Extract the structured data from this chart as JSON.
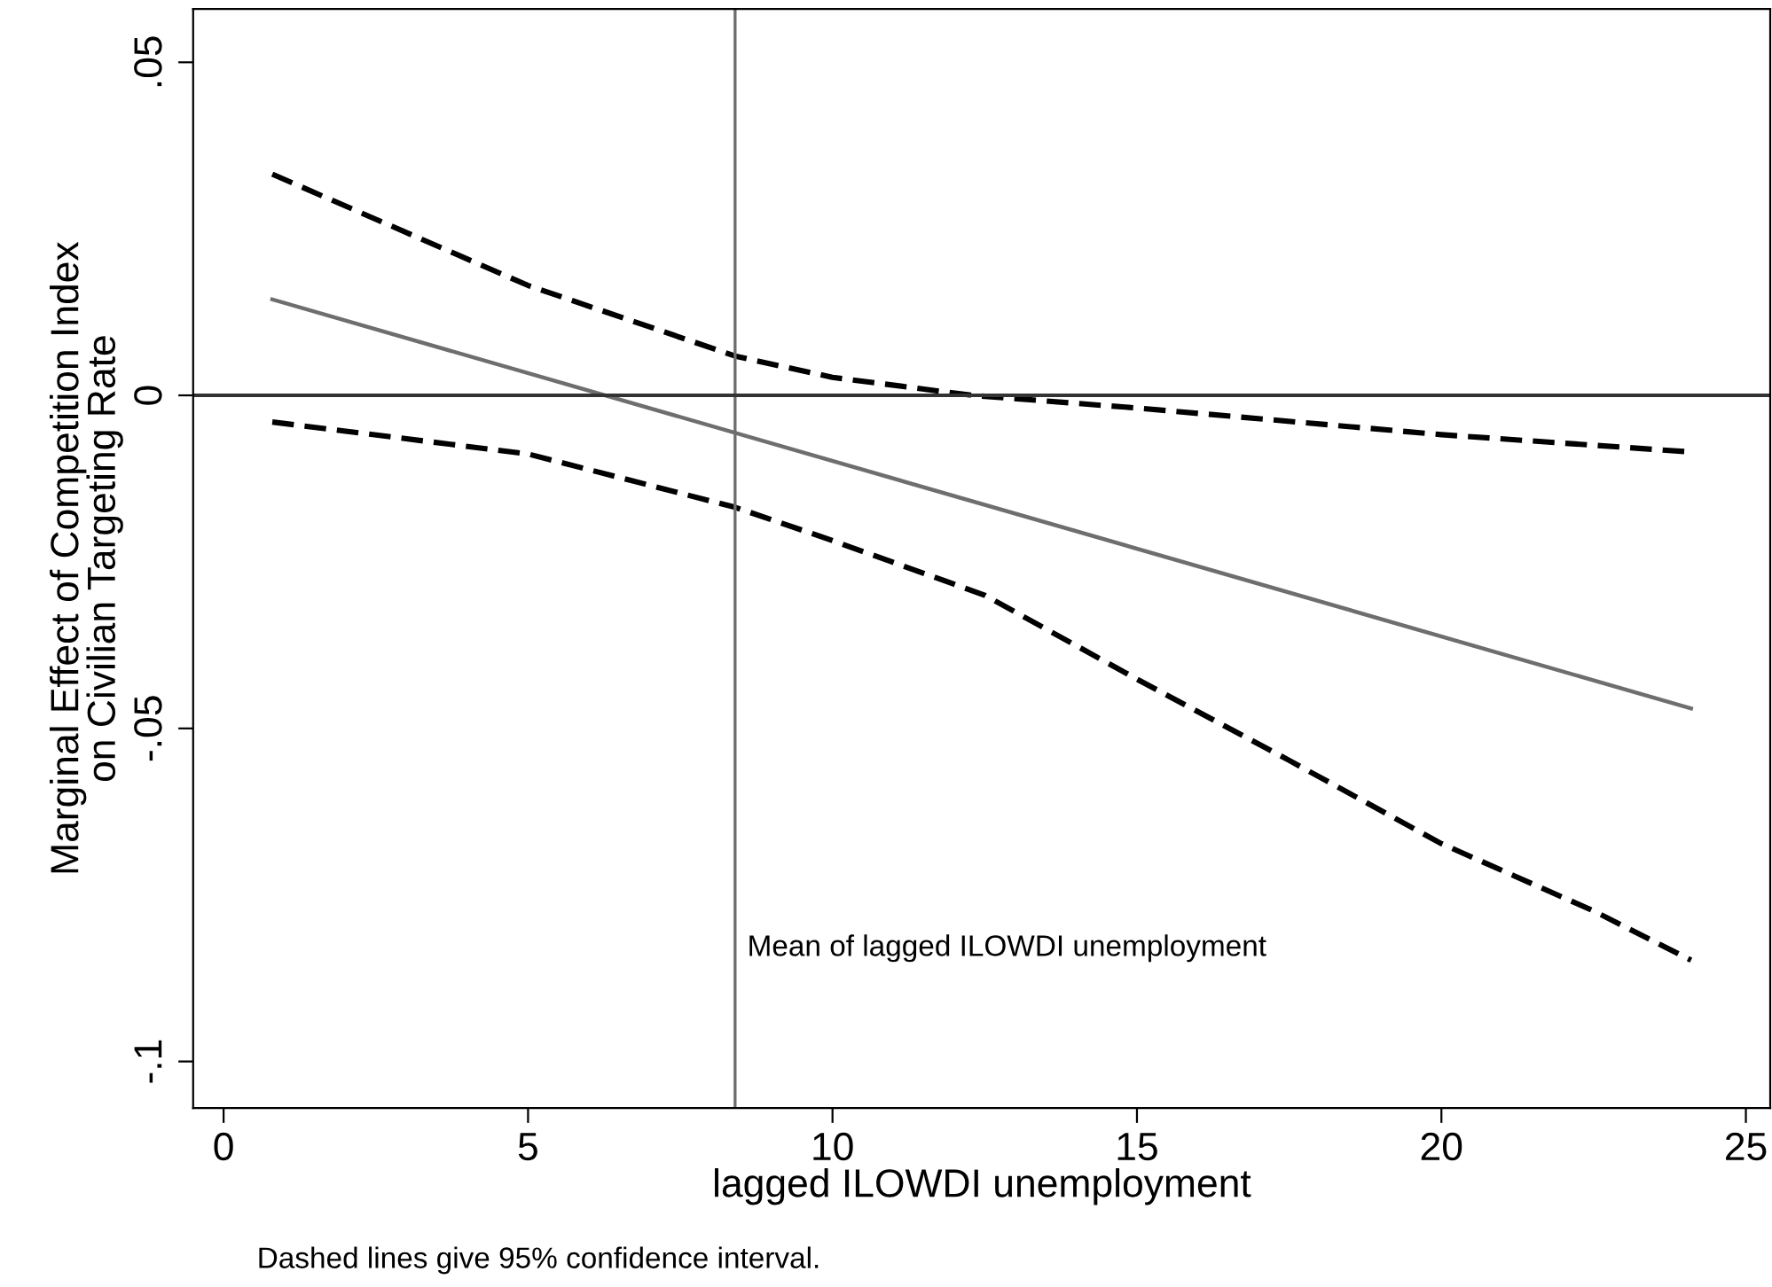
{
  "chart_data": {
    "type": "line",
    "xlabel": "lagged ILOWDI unemployment",
    "ylabel": "Marginal Effect of Competition Index\non Civilian Targeting Rate",
    "series": [
      {
        "color": "#6e6e6e",
        "line_style": "solid",
        "x": [
          0.8,
          24.1
        ],
        "values": [
          0.0144,
          -0.047
        ]
      },
      {
        "color": "#000000",
        "line_style": "dashed",
        "x": [
          0.8,
          5,
          8.4,
          10,
          12.3,
          15,
          20,
          24.1
        ],
        "values": [
          0.0332,
          0.0165,
          0.0059,
          0.0027,
          0,
          -0.0019,
          -0.0059,
          -0.0085
        ]
      },
      {
        "color": "#000000",
        "line_style": "dashed",
        "x": [
          0.8,
          5,
          8.4,
          10,
          12.5,
          15,
          17.5,
          20,
          22.5,
          24.1
        ],
        "values": [
          -0.004,
          -0.0088,
          -0.0168,
          -0.0218,
          -0.03,
          -0.0426,
          -0.0548,
          -0.0673,
          -0.0774,
          -0.0848
        ]
      }
    ],
    "xlim": [
      -0.5,
      25.4
    ],
    "xticks": [
      0,
      5,
      10,
      15,
      20,
      25
    ],
    "ylim": [
      -0.107,
      0.058
    ],
    "yticks": [
      {
        "value": -0.1,
        "label": "-.1"
      },
      {
        "value": -0.05,
        "label": "-.05"
      },
      0,
      {
        "value": 0.05,
        "label": ".05"
      }
    ],
    "ref_lines": [
      {
        "axis": "x",
        "value": 8.4,
        "color": "#6e6e6e"
      },
      {
        "axis": "y",
        "value": 0,
        "color": "#333333"
      }
    ],
    "annotations": [
      {
        "text": "Mean of lagged ILOWDI unemployment",
        "x": 8.4,
        "y": -0.083
      },
      "Dashed lines give 95% confidence interval."
    ],
    "grid": false,
    "legend": false,
    "marker": "none"
  }
}
